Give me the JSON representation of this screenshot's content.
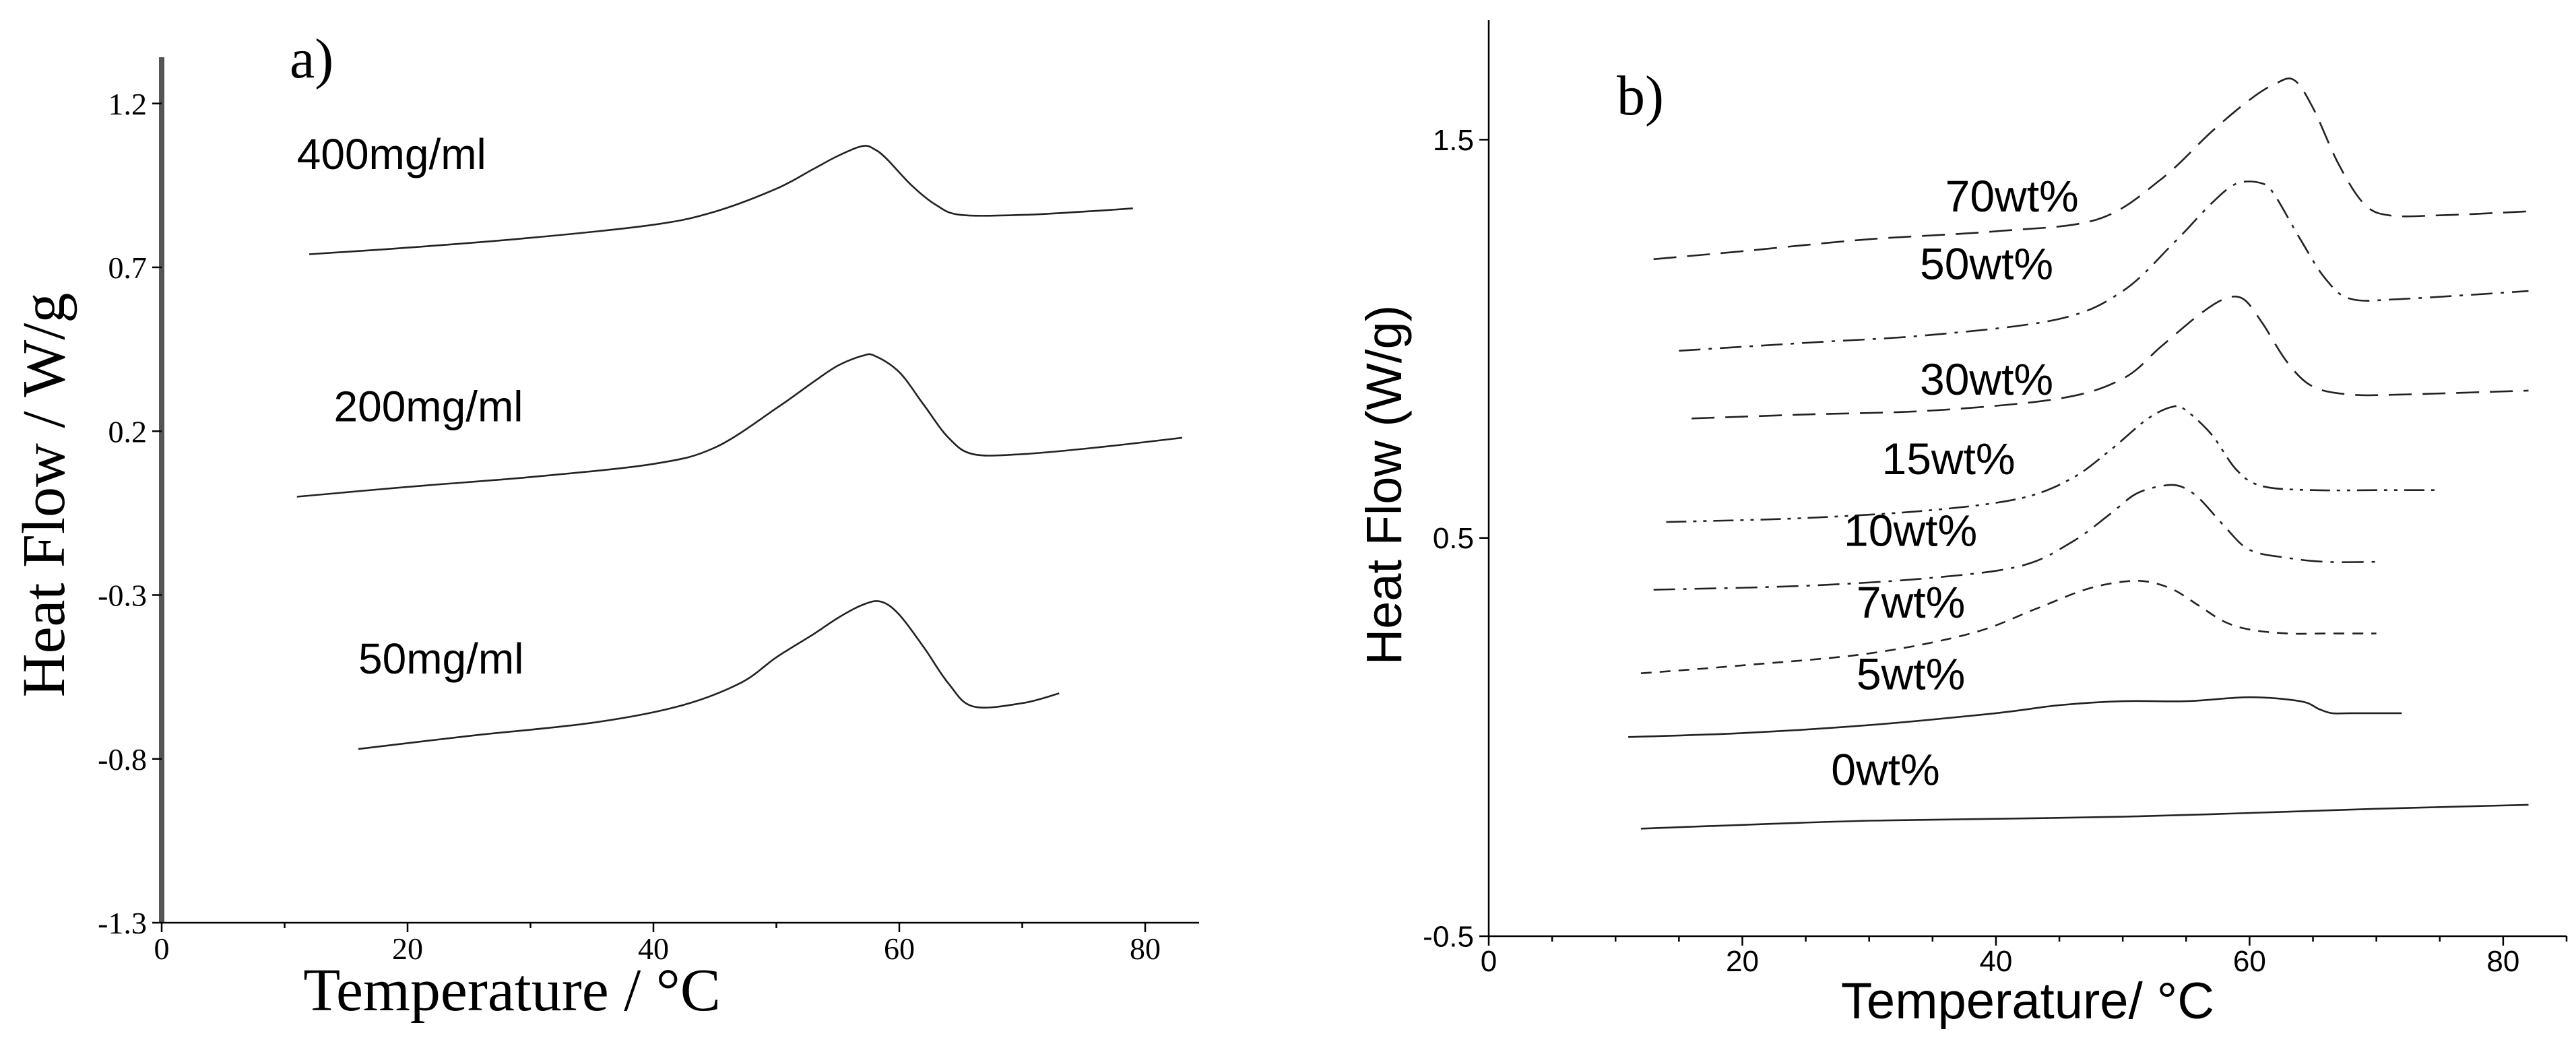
{
  "figure": {
    "colors": {
      "ink": "#222222",
      "axis": "#000000"
    }
  },
  "chart_data": [
    {
      "type": "line",
      "panel_label": "a)",
      "xlabel": "Temperature / °C",
      "ylabel": "Heat Flow / W/g",
      "xlim": [
        0,
        80
      ],
      "ylim": [
        -1.3,
        1.3
      ],
      "x_ticks": [
        0,
        20,
        40,
        60,
        80
      ],
      "x_tick_labels": [
        "0",
        "20",
        "40",
        "60",
        "80"
      ],
      "y_ticks": [
        -1.3,
        -0.8,
        -0.3,
        0.2,
        0.7,
        1.2
      ],
      "y_tick_labels": [
        "-1.3",
        "-0.8",
        "-0.3",
        "0.2",
        "0.7",
        "1.2"
      ],
      "grid": false,
      "series": [
        {
          "name": "400mg/ml",
          "label": "400mg/ml",
          "label_anchor": [
            11,
            1.0
          ],
          "dash": "solid",
          "x": [
            12,
            20,
            30,
            40,
            45,
            50,
            53,
            55,
            57,
            58,
            59,
            61,
            63,
            65,
            70,
            75,
            79
          ],
          "y": [
            0.74,
            0.76,
            0.79,
            0.83,
            0.87,
            0.94,
            1.0,
            1.04,
            1.07,
            1.06,
            1.03,
            0.95,
            0.89,
            0.86,
            0.86,
            0.87,
            0.88
          ]
        },
        {
          "name": "200mg/ml",
          "label": "200mg/ml",
          "label_anchor": [
            14,
            0.23
          ],
          "dash": "solid",
          "x": [
            11,
            20,
            30,
            40,
            45,
            50,
            53,
            55,
            57,
            58,
            60,
            62,
            64,
            66,
            70,
            76,
            83
          ],
          "y": [
            0.0,
            0.03,
            0.06,
            0.1,
            0.15,
            0.27,
            0.35,
            0.4,
            0.43,
            0.43,
            0.38,
            0.28,
            0.18,
            0.13,
            0.13,
            0.15,
            0.18
          ]
        },
        {
          "name": "50mg/ml",
          "label": "50mg/ml",
          "label_anchor": [
            16,
            -0.54
          ],
          "dash": "solid",
          "x": [
            16,
            25,
            35,
            42,
            47,
            50,
            53,
            55,
            57,
            58.5,
            60,
            62,
            64,
            66,
            70,
            73
          ],
          "y": [
            -0.77,
            -0.73,
            -0.69,
            -0.64,
            -0.57,
            -0.49,
            -0.42,
            -0.37,
            -0.33,
            -0.32,
            -0.36,
            -0.46,
            -0.57,
            -0.64,
            -0.63,
            -0.6
          ]
        }
      ]
    },
    {
      "type": "line",
      "panel_label": "b)",
      "xlabel": "Temperature/ °C",
      "ylabel": "Heat Flow (W/g)",
      "xlim": [
        0,
        85
      ],
      "ylim": [
        -0.5,
        1.8
      ],
      "x_ticks": [
        0,
        20,
        40,
        60,
        80
      ],
      "x_tick_labels": [
        "0",
        "20",
        "40",
        "60",
        "80"
      ],
      "y_ticks": [
        -0.5,
        0.5,
        1.5
      ],
      "y_tick_labels": [
        "-0.5",
        "0.5",
        "1.5"
      ],
      "grid": false,
      "series": [
        {
          "name": "70wt%",
          "label": "70wt%",
          "label_anchor": [
            36,
            1.32
          ],
          "dash": "dash-long",
          "x": [
            13,
            20,
            30,
            40,
            48,
            53,
            57,
            60,
            62,
            63.5,
            65,
            67,
            69,
            71,
            75,
            82
          ],
          "y": [
            1.2,
            1.22,
            1.25,
            1.27,
            1.3,
            1.4,
            1.52,
            1.6,
            1.64,
            1.65,
            1.58,
            1.44,
            1.34,
            1.31,
            1.31,
            1.32
          ]
        },
        {
          "name": "50wt%",
          "label": "50wt%",
          "label_anchor": [
            34,
            1.15
          ],
          "dash": "dash-dot",
          "x": [
            15,
            25,
            35,
            45,
            50,
            54,
            57,
            59,
            61,
            62,
            64,
            66,
            68,
            72,
            82
          ],
          "y": [
            0.97,
            0.99,
            1.01,
            1.05,
            1.12,
            1.24,
            1.34,
            1.39,
            1.39,
            1.36,
            1.25,
            1.15,
            1.1,
            1.1,
            1.12
          ]
        },
        {
          "name": "30wt%",
          "label": "30wt%",
          "label_anchor": [
            34,
            0.86
          ],
          "dash": "dash-long",
          "x": [
            16,
            25,
            35,
            45,
            50,
            53,
            56,
            58,
            59.5,
            61,
            63,
            65,
            68,
            72,
            82
          ],
          "y": [
            0.8,
            0.81,
            0.82,
            0.85,
            0.9,
            0.98,
            1.06,
            1.1,
            1.1,
            1.04,
            0.94,
            0.88,
            0.86,
            0.86,
            0.87
          ]
        },
        {
          "name": "15wt%",
          "label": "15wt%",
          "label_anchor": [
            31,
            0.66
          ],
          "dash": "dash-dot-dot",
          "x": [
            14,
            25,
            35,
            42,
            46,
            49,
            52,
            54,
            55,
            57,
            59,
            61,
            65,
            70,
            75
          ],
          "y": [
            0.54,
            0.55,
            0.57,
            0.6,
            0.65,
            0.72,
            0.8,
            0.83,
            0.82,
            0.76,
            0.67,
            0.63,
            0.62,
            0.62,
            0.62
          ]
        },
        {
          "name": "10wt%",
          "label": "10wt%",
          "label_anchor": [
            28,
            0.48
          ],
          "dash": "dash-dot",
          "x": [
            13,
            25,
            35,
            42,
            46,
            49,
            51,
            53,
            54.5,
            56,
            58,
            60,
            63,
            66,
            70
          ],
          "y": [
            0.37,
            0.38,
            0.4,
            0.43,
            0.49,
            0.56,
            0.61,
            0.63,
            0.63,
            0.6,
            0.53,
            0.47,
            0.45,
            0.44,
            0.44
          ]
        },
        {
          "name": "7wt%",
          "label": "7wt%",
          "label_anchor": [
            29,
            0.3
          ],
          "dash": "dash-short",
          "x": [
            12,
            20,
            30,
            38,
            43,
            47,
            50,
            52,
            54,
            56,
            58,
            60,
            63,
            66,
            70
          ],
          "y": [
            0.16,
            0.18,
            0.21,
            0.26,
            0.32,
            0.37,
            0.39,
            0.39,
            0.37,
            0.33,
            0.29,
            0.27,
            0.26,
            0.26,
            0.26
          ]
        },
        {
          "name": "5wt%",
          "label": "5wt%",
          "label_anchor": [
            29,
            0.12
          ],
          "dash": "solid",
          "x": [
            11,
            20,
            30,
            40,
            45,
            50,
            55,
            60,
            64,
            65.5,
            66.5,
            68,
            72
          ],
          "y": [
            0.0,
            0.01,
            0.03,
            0.06,
            0.08,
            0.09,
            0.09,
            0.1,
            0.09,
            0.07,
            0.06,
            0.06,
            0.06
          ]
        },
        {
          "name": "0wt%",
          "label": "0wt%",
          "label_anchor": [
            27,
            -0.12
          ],
          "dash": "solid",
          "x": [
            12,
            30,
            50,
            70,
            82
          ],
          "y": [
            -0.23,
            -0.21,
            -0.2,
            -0.18,
            -0.17
          ]
        }
      ]
    }
  ]
}
